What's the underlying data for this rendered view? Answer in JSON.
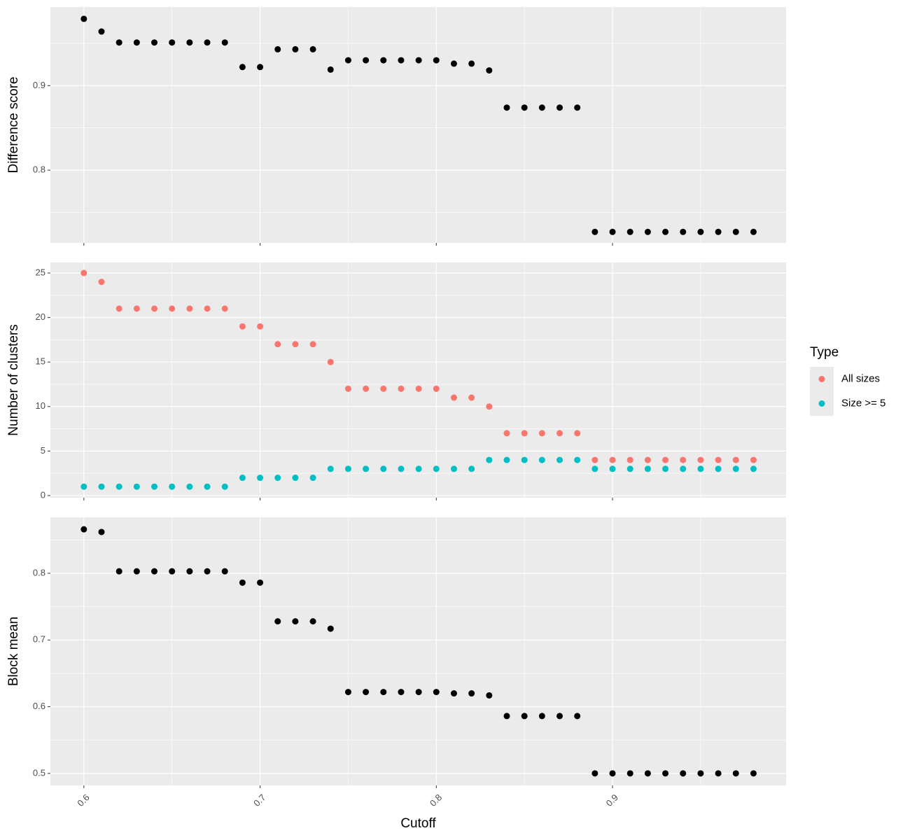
{
  "chart_data": [
    {
      "type": "scatter",
      "y_label": "Difference score",
      "x": [
        0.6,
        0.61,
        0.62,
        0.63,
        0.64,
        0.65,
        0.66,
        0.67,
        0.68,
        0.69,
        0.7,
        0.71,
        0.72,
        0.73,
        0.74,
        0.75,
        0.76,
        0.77,
        0.78,
        0.79,
        0.8,
        0.81,
        0.82,
        0.83,
        0.84,
        0.85,
        0.86,
        0.87,
        0.88,
        0.89,
        0.9,
        0.91,
        0.92,
        0.93,
        0.94,
        0.95,
        0.96,
        0.97,
        0.98
      ],
      "series": [
        {
          "color": "#000000",
          "values": [
            0.979,
            0.964,
            0.951,
            0.951,
            0.951,
            0.951,
            0.951,
            0.951,
            0.951,
            0.922,
            0.922,
            0.943,
            0.943,
            0.943,
            0.919,
            0.93,
            0.93,
            0.93,
            0.93,
            0.93,
            0.93,
            0.926,
            0.926,
            0.918,
            0.874,
            0.874,
            0.874,
            0.874,
            0.874,
            0.727,
            0.727,
            0.727,
            0.727,
            0.727,
            0.727,
            0.727,
            0.727,
            0.727,
            0.727
          ]
        }
      ],
      "xlim": [
        0.581,
        0.9985
      ],
      "xticks": [
        0.6,
        0.7,
        0.8,
        0.9
      ],
      "ylim": [
        0.714,
        0.993
      ],
      "yticks": [
        0.8,
        0.9
      ],
      "grid": true
    },
    {
      "type": "scatter",
      "y_label": "Number of clusters",
      "legend_title": "Type",
      "x": [
        0.6,
        0.61,
        0.62,
        0.63,
        0.64,
        0.65,
        0.66,
        0.67,
        0.68,
        0.69,
        0.7,
        0.71,
        0.72,
        0.73,
        0.74,
        0.75,
        0.76,
        0.77,
        0.78,
        0.79,
        0.8,
        0.81,
        0.82,
        0.83,
        0.84,
        0.85,
        0.86,
        0.87,
        0.88,
        0.89,
        0.9,
        0.91,
        0.92,
        0.93,
        0.94,
        0.95,
        0.96,
        0.97,
        0.98
      ],
      "series": [
        {
          "name": "All sizes",
          "color": "#f8766d",
          "values": [
            25,
            24,
            21,
            21,
            21,
            21,
            21,
            21,
            21,
            19,
            19,
            17,
            17,
            17,
            15,
            12,
            12,
            12,
            12,
            12,
            12,
            11,
            11,
            10,
            7,
            7,
            7,
            7,
            7,
            4,
            4,
            4,
            4,
            4,
            4,
            4,
            4,
            4,
            4
          ]
        },
        {
          "name": "Size >= 5",
          "color": "#00bfc4",
          "values": [
            1,
            1,
            1,
            1,
            1,
            1,
            1,
            1,
            1,
            2,
            2,
            2,
            2,
            2,
            3,
            3,
            3,
            3,
            3,
            3,
            3,
            3,
            3,
            4,
            4,
            4,
            4,
            4,
            4,
            3,
            3,
            3,
            3,
            3,
            3,
            3,
            3,
            3,
            3
          ]
        }
      ],
      "xlim": [
        0.581,
        0.9985
      ],
      "xticks": [
        0.6,
        0.7,
        0.8,
        0.9
      ],
      "ylim": [
        -0.24,
        26.18
      ],
      "yticks": [
        0,
        5,
        10,
        15,
        20,
        25
      ],
      "grid": true,
      "legend": "right"
    },
    {
      "type": "scatter",
      "y_label": "Block mean",
      "x_label": "Cutoff",
      "x": [
        0.6,
        0.61,
        0.62,
        0.63,
        0.64,
        0.65,
        0.66,
        0.67,
        0.68,
        0.69,
        0.7,
        0.71,
        0.72,
        0.73,
        0.74,
        0.75,
        0.76,
        0.77,
        0.78,
        0.79,
        0.8,
        0.81,
        0.82,
        0.83,
        0.84,
        0.85,
        0.86,
        0.87,
        0.88,
        0.89,
        0.9,
        0.91,
        0.92,
        0.93,
        0.94,
        0.95,
        0.96,
        0.97,
        0.98
      ],
      "series": [
        {
          "color": "#000000",
          "values": [
            0.866,
            0.862,
            0.803,
            0.803,
            0.803,
            0.803,
            0.803,
            0.803,
            0.803,
            0.786,
            0.786,
            0.728,
            0.728,
            0.728,
            0.717,
            0.622,
            0.622,
            0.622,
            0.622,
            0.622,
            0.622,
            0.62,
            0.62,
            0.617,
            0.586,
            0.586,
            0.586,
            0.586,
            0.586,
            0.5,
            0.5,
            0.5,
            0.5,
            0.5,
            0.5,
            0.5,
            0.5,
            0.5,
            0.5
          ]
        }
      ],
      "xlim": [
        0.581,
        0.9985
      ],
      "xticks": [
        0.6,
        0.7,
        0.8,
        0.9
      ],
      "xtick_labels": true,
      "ylim": [
        0.482,
        0.884
      ],
      "yticks": [
        0.5,
        0.6,
        0.7,
        0.8
      ],
      "grid": true
    }
  ]
}
